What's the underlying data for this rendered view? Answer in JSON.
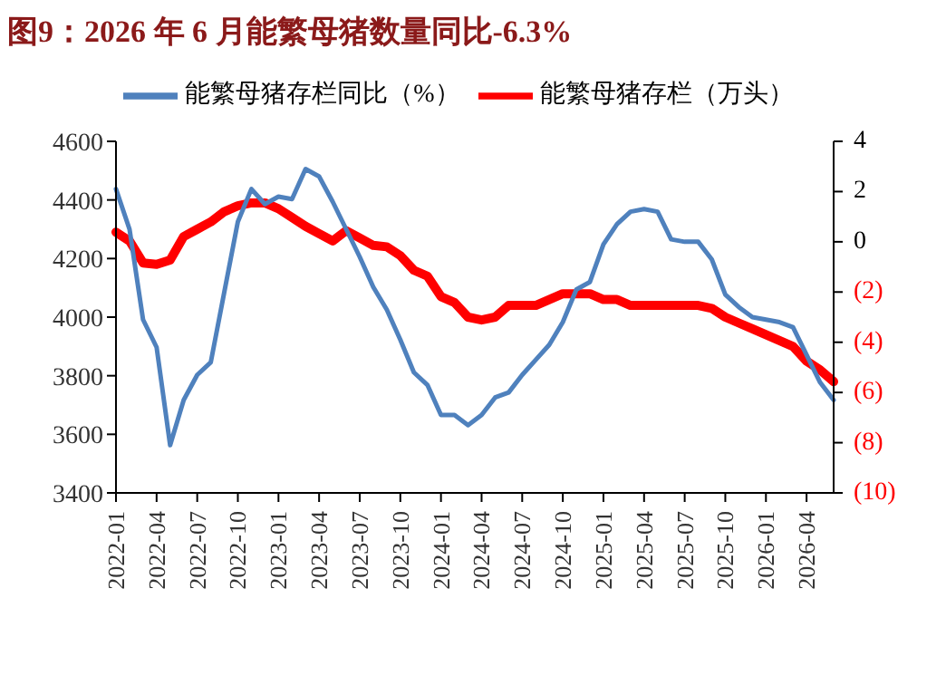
{
  "chart_data": {
    "type": "line",
    "title": "图9：2026 年 6 月能繁母猪数量同比-6.3%",
    "categories": [
      "2022-01",
      null,
      null,
      "2022-04",
      null,
      null,
      "2022-07",
      null,
      null,
      "2022-10",
      null,
      null,
      "2023-01",
      null,
      null,
      "2023-04",
      null,
      null,
      "2023-07",
      null,
      null,
      "2023-10",
      null,
      null,
      "2024-01",
      null,
      null,
      "2024-04",
      null,
      null,
      "2024-07",
      null,
      null,
      "2024-10",
      null,
      null,
      "2025-01",
      null,
      null,
      "2025-04",
      null,
      null,
      "2025-07",
      null,
      null,
      "2025-10",
      null,
      null,
      "2026-01",
      null,
      null,
      "2026-04",
      null,
      null
    ],
    "series": [
      {
        "name": "能繁母猪存栏（万头）",
        "color": "#ff0000",
        "values": [
          4290,
          4260,
          4185,
          4180,
          4195,
          4275,
          4300,
          4325,
          4360,
          4380,
          4390,
          4390,
          4370,
          4340,
          4310,
          4285,
          4260,
          4295,
          4270,
          4245,
          4240,
          4210,
          4160,
          4140,
          4070,
          4050,
          4000,
          3990,
          4000,
          4040,
          4040,
          4040,
          4060,
          4080,
          4080,
          4080,
          4060,
          4060,
          4040,
          4040,
          4040,
          4040,
          4040,
          4040,
          4030,
          4000,
          3980,
          3960,
          3940,
          3920,
          3900,
          3850,
          3820,
          3780
        ]
      },
      {
        "name": "能繁母猪存栏同比（%）",
        "color": "#4f81bd",
        "axis": "y2",
        "values": [
          2.1,
          0.5,
          -3.1,
          -4.2,
          -8.1,
          -6.3,
          -5.3,
          -4.8,
          -2.0,
          0.8,
          2.1,
          1.5,
          1.8,
          1.7,
          2.9,
          2.6,
          1.6,
          0.5,
          -0.6,
          -1.8,
          -2.7,
          -3.9,
          -5.2,
          -5.7,
          -6.9,
          -6.9,
          -7.3,
          -6.9,
          -6.2,
          -6.0,
          -5.3,
          -4.7,
          -4.1,
          -3.2,
          -1.9,
          -1.6,
          -0.1,
          0.7,
          1.2,
          1.3,
          1.2,
          0.1,
          0,
          0,
          -0.7,
          -2.1,
          -2.6,
          -3.0,
          -3.1,
          -3.2,
          -3.4,
          -4.5,
          -5.6,
          -6.3
        ]
      }
    ],
    "ylim": [
      3400,
      4600
    ],
    "yticks": [
      3400,
      3600,
      3800,
      4000,
      4200,
      4400,
      4600
    ],
    "y2lim": [
      -10,
      4
    ],
    "y2ticks": [
      {
        "value": -10,
        "label": "(10)"
      },
      {
        "value": -8,
        "label": "(8)"
      },
      {
        "value": -6,
        "label": "(6)"
      },
      {
        "value": -4,
        "label": "(4)"
      },
      {
        "value": -2,
        "label": "(2)"
      },
      0,
      2,
      4
    ],
    "legend": "top",
    "marker": "none",
    "line_style": "solid"
  }
}
